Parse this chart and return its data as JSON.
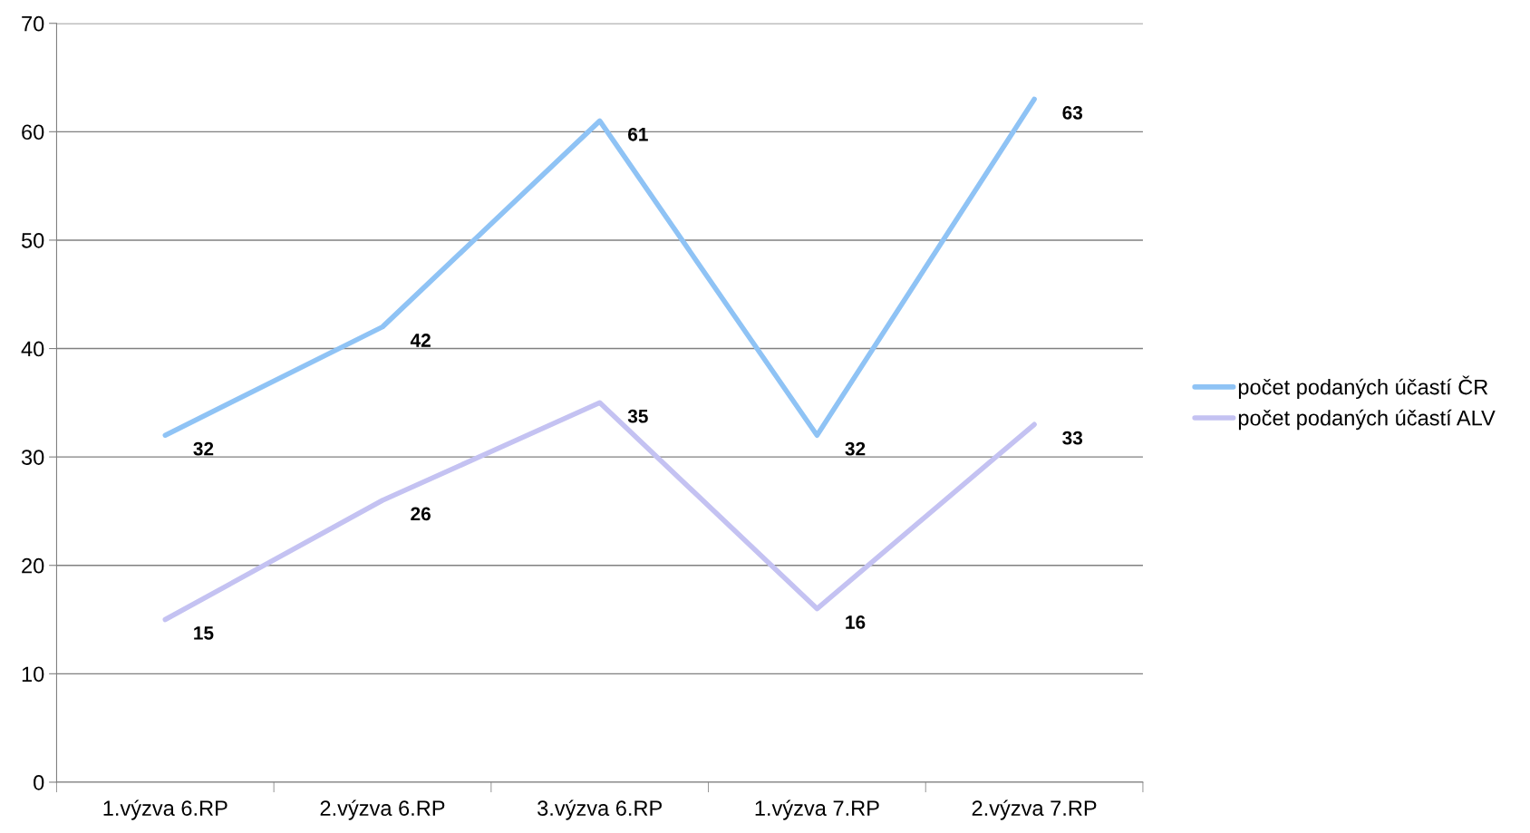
{
  "chart_data": {
    "type": "line",
    "categories": [
      "1.výzva 6.RP",
      "2.výzva 6.RP",
      "3.výzva 6.RP",
      "1.výzva 7.RP",
      "2.výzva 7.RP"
    ],
    "series": [
      {
        "name": "počet podaných účastí ČR",
        "color": "#8fc3f5",
        "values": [
          32,
          42,
          61,
          32,
          63
        ]
      },
      {
        "name": "počet podaných účastí ALV",
        "color": "#c4c2f2",
        "values": [
          15,
          26,
          35,
          16,
          33
        ]
      }
    ],
    "ylim": [
      0,
      70
    ],
    "yticks": [
      0,
      10,
      20,
      30,
      40,
      50,
      60,
      70
    ],
    "grid": "y",
    "legend": "right",
    "data_labels": true,
    "marker": "none",
    "line_style": "solid"
  }
}
